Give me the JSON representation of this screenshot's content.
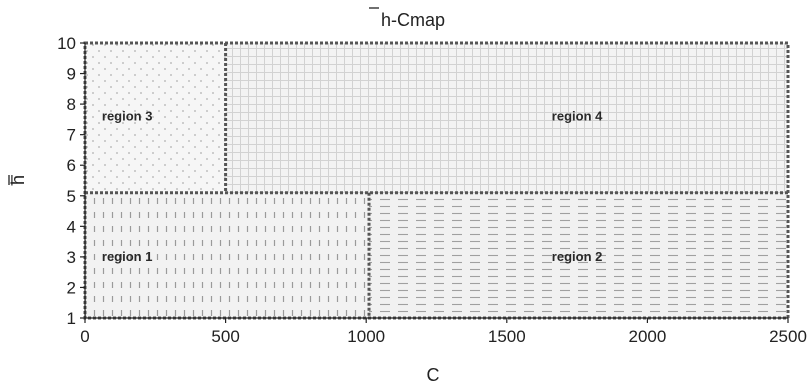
{
  "chart_data": {
    "type": "region-map",
    "title": "h̅-Cmap",
    "title_parts": {
      "symbol": "h",
      "rest": "-Cmap"
    },
    "xlabel": "C",
    "ylabel": "h̅",
    "xlim": [
      0,
      2500
    ],
    "ylim": [
      1,
      10
    ],
    "x_ticks": [
      0,
      500,
      1000,
      1500,
      2000,
      2500
    ],
    "y_ticks": [
      1,
      2,
      3,
      4,
      5,
      6,
      7,
      8,
      9,
      10
    ],
    "x_tick_labels": [
      "0",
      "500",
      "1000",
      "1500",
      "2000",
      "2500"
    ],
    "y_tick_labels": [
      "1",
      "2",
      "3",
      "4",
      "5",
      "6",
      "7",
      "8",
      "9",
      "10"
    ],
    "boundaries": {
      "horizontal_y": 5.1,
      "vertical_upper_x": 500,
      "vertical_lower_x": 1010
    },
    "regions": [
      {
        "name": "region 1",
        "x": [
          0,
          1010
        ],
        "y": [
          1,
          5.1
        ],
        "pattern": "dash-vertical",
        "label_at": [
          150,
          3
        ]
      },
      {
        "name": "region 2",
        "x": [
          1010,
          2500
        ],
        "y": [
          1,
          5.1
        ],
        "pattern": "dash-horizontal",
        "label_at": [
          1750,
          3
        ]
      },
      {
        "name": "region 3",
        "x": [
          0,
          500
        ],
        "y": [
          5.1,
          10
        ],
        "pattern": "dots",
        "label_at": [
          150,
          7.6
        ]
      },
      {
        "name": "region 4",
        "x": [
          500,
          2500
        ],
        "y": [
          5.1,
          10
        ],
        "pattern": "grid",
        "label_at": [
          1750,
          7.6
        ]
      }
    ]
  }
}
